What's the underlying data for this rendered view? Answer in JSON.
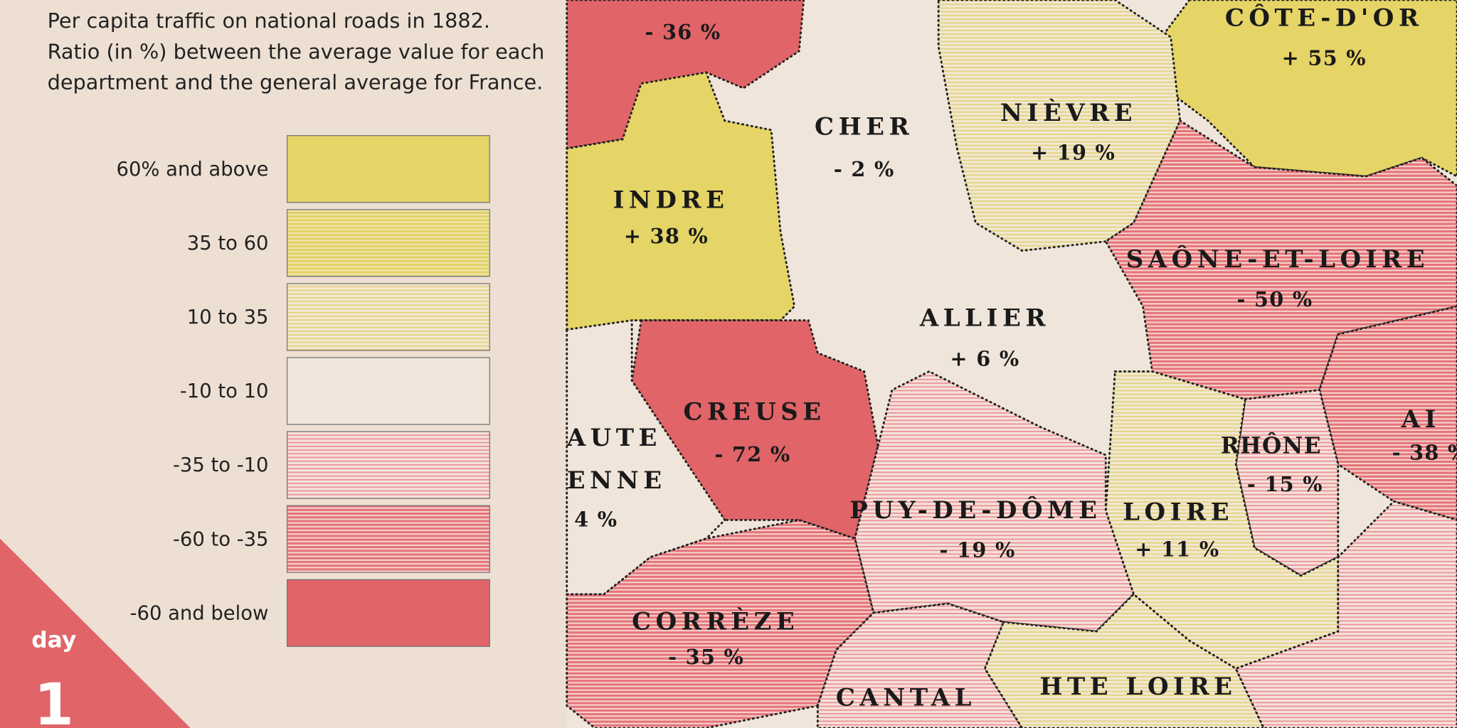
{
  "title_lines": [
    "Per capita traffic on national roads in 1882.",
    "Ratio (in %) between the average value for each",
    "department and the general average for France."
  ],
  "legend": [
    "60% and above",
    "35 to 60",
    "10 to 35",
    "-10 to 10",
    "-35 to -10",
    "-60 to -35",
    "-60 and below"
  ],
  "badge": {
    "word": "day",
    "number": "1"
  },
  "map": {
    "labels": [
      "- 36 %",
      "CÔTE-D'OR",
      "+ 55 %",
      "CHER",
      "- 2 %",
      "NIÈVRE",
      "+ 19 %",
      "INDRE",
      "+ 38 %",
      "SAÔNE-ET-LOIRE",
      "- 50 %",
      "ALLIER",
      "+ 6 %",
      "CREUSE",
      "- 72 %",
      "AUTE",
      "ENNE",
      "4 %",
      "RHÔNE",
      "- 15 %",
      "AI",
      "- 38 %",
      "PUY-DE-DÔME",
      "- 19 %",
      "LOIRE",
      "+ 11 %",
      "CORRÈZE",
      "- 35 %",
      "CANTAL",
      "HTE LOIRE"
    ]
  }
}
